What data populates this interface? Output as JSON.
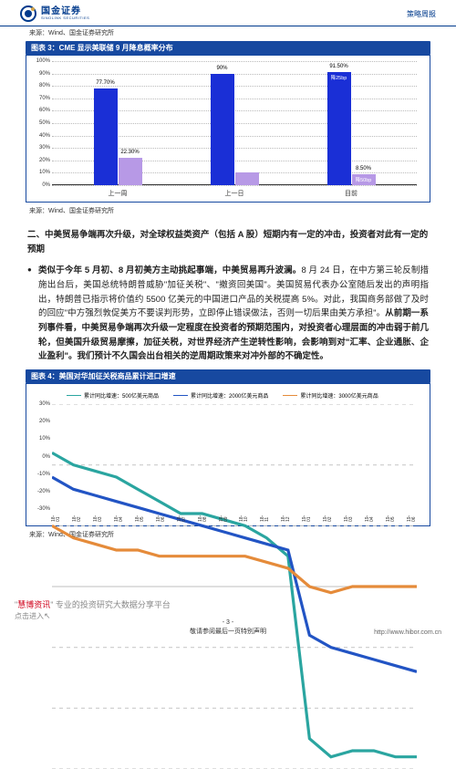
{
  "header": {
    "brand_cn": "国金证券",
    "brand_en": "SINOLINK SECURITIES",
    "right": "策略周报"
  },
  "sources": {
    "s1": "来源：Wind、国金证券研究所",
    "s2": "来源：Wind、国金证券研究所",
    "s3": "来源：Wind、国金证券研究所"
  },
  "chart3": {
    "title": "图表 3：CME 显示美联储 9 月降息概率分布",
    "type": "bar",
    "ylim": [
      0,
      100
    ],
    "ytick_step": 10,
    "y_suffix": "%",
    "categories": [
      "上一周",
      "上一日",
      "目前"
    ],
    "series": [
      {
        "name": "rate25",
        "label": "降25bp",
        "color": "#1a2fd6",
        "values": [
          77.7,
          90.0,
          91.5
        ],
        "value_labels": [
          "77.70%",
          "90%",
          "91.50%"
        ],
        "inner_labels": [
          "",
          "",
          "降25bp"
        ]
      },
      {
        "name": "rate50",
        "label": "降50bp",
        "color": "#b799e6",
        "values": [
          22.3,
          10.0,
          8.5
        ],
        "value_labels": [
          "22.30%",
          "",
          "8.50%"
        ],
        "inner_labels": [
          "",
          "",
          "降50bp"
        ]
      }
    ],
    "background_color": "#ffffff",
    "grid_color": "#bbbbbb"
  },
  "section2": {
    "heading": "二、中美贸易争端再次升级，对全球权益类资产（包括 A 股）短期内有一定的冲击，投资者对此有一定的预期",
    "body_html": "<span class=\"bold\">类似于今年 5 月初、8 月初美方主动挑起事端，中美贸易再升波澜。</span>8 月 24 日，在中方第三轮反制措施出台后，美国总统特朗普威胁\"加征关税\"、\"撤资回美国\"。美国贸易代表办公室随后发出的声明指出，特朗普已指示将价值约 5500 亿美元的中国进口产品的关税提高 5%。对此，我国商务部做了及时的回应\"中方强烈敦促美方不要误判形势，立即停止错误做法，否则一切后果由美方承担\"。<span class=\"bold\">从前期一系列事件看，中美贸易争端再次升级一定程度在投资者的预期范围内，对投资者心理层面的冲击弱于前几轮，但美国升级贸易摩擦，加征关税，对世界经济产生逆转性影响，会影响到对\"汇率、企业通胀、企业盈利\"。我们预计不久国会出台相关的逆周期政策来对冲外部的不确定性。</span>"
  },
  "chart4": {
    "title": "图表 4：美国对华加征关税商品累计进口增速",
    "type": "line",
    "ylim": [
      -30,
      30
    ],
    "ytick_step": 10,
    "y_suffix": "%",
    "background_color": "#ffffff",
    "grid_color": "#cccccc",
    "x_labels": [
      "18-01",
      "18-02",
      "18-03",
      "18-04",
      "18-05",
      "18-06",
      "18-07",
      "18-08",
      "18-09",
      "18-10",
      "18-11",
      "18-12",
      "19-01",
      "19-02",
      "19-03",
      "19-04",
      "19-05",
      "19-06"
    ],
    "series": [
      {
        "name": "s500",
        "label": "累计同比增速：500亿美元商品",
        "color": "#2aa5a0",
        "values": [
          22,
          20,
          19,
          18,
          16,
          14,
          12,
          12,
          11,
          10,
          8,
          5,
          -25,
          -28,
          -27,
          -27,
          -28,
          -28
        ]
      },
      {
        "name": "s2000",
        "label": "累计同比增速：2000亿美元商品",
        "color": "#2254c4",
        "values": [
          18,
          16,
          15,
          14,
          13,
          12,
          11,
          10,
          9,
          8,
          7,
          6,
          -8,
          -10,
          -11,
          -12,
          -13,
          -14
        ]
      },
      {
        "name": "s3000",
        "label": "累计同比增速：3000亿美元商品",
        "color": "#e58b3a",
        "values": [
          10,
          8,
          7,
          6,
          6,
          5,
          5,
          5,
          5,
          5,
          4,
          3,
          0,
          -1,
          0,
          0,
          0,
          0
        ]
      }
    ]
  },
  "footer": {
    "promo_prefix": "\"",
    "promo_brand": "慧博资讯",
    "promo_suffix": "\" 专业的投资研究大数据分享平台",
    "sub": "点击进入",
    "pagenum": "- 3 -",
    "disclaimer": "敬请参阅最后一页特别声明",
    "url": "http://www.hibor.com.cn"
  }
}
